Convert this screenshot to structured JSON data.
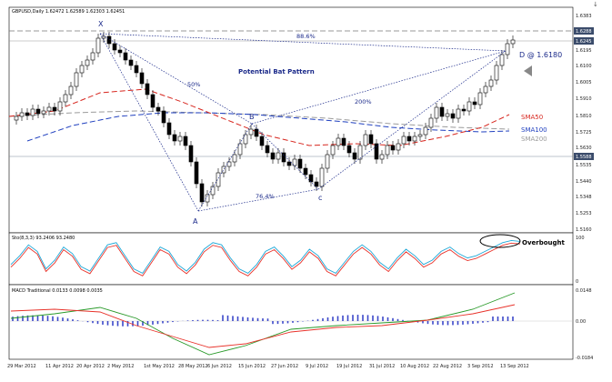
{
  "colors": {
    "sma50": "#d7261e",
    "sma100": "#1f3fbf",
    "sma200": "#9a9a9a",
    "pattern": "#1b2a8a",
    "bull": "#ffffff",
    "bear": "#000000",
    "stoch_main": "#1ea8d8",
    "stoch_signal": "#e8322a",
    "macd_hist": "#3b47c9",
    "macd_line": "#2a9a2a",
    "macd_signal": "#e8322a",
    "price_badge_bg": "#3b4c6b"
  },
  "main_chart": {
    "header": "GBPUSD,Daily  1.62472 1.62589 1.62303 1.62451",
    "pattern_title": "Potential Bat Pattern",
    "point_labels": {
      "x": "X",
      "a": "A",
      "b": "B",
      "c": "c",
      "d": "D @ 1.6180"
    },
    "ratios": {
      "xa_ab": "50%",
      "xd": "88.6%",
      "ab_bc": "76.4%",
      "bc_cd": "200%"
    },
    "ma_labels": {
      "sma50": "SMA50",
      "sma100": "SMA100",
      "sma200": "SMA200"
    },
    "price_axis": [
      "1.6383",
      "1.6288",
      "1.6195",
      "1.6100",
      "1.6005",
      "1.5910",
      "1.5810",
      "1.5725",
      "1.5630",
      "1.5535",
      "1.5440",
      "1.5348",
      "1.5253",
      "1.5160"
    ],
    "price_badges": [
      "1.6288",
      "1.6245",
      "1.5588"
    ]
  },
  "stochastic": {
    "header": "Sto(8,3,3) 93.2406 93.2480",
    "axis": [
      "100",
      "0"
    ],
    "annotation": "Overbought"
  },
  "macd": {
    "header": "MACD Traditional 0.0133 0.0098 0.0035",
    "axis": [
      "0.0148",
      "0.00",
      "-0.0184"
    ]
  },
  "time_axis": [
    "29 Mar 2012",
    "11 Apr 2012",
    "20 Apr 2012",
    "2 May 2012",
    "1st May 2012",
    "28 May 2012",
    "6 Jun 2012",
    "15 Jun 2012",
    "27 Jun 2012",
    "9 Jul 2012",
    "19 Jul 2012",
    "31 Jul 2012",
    "10 Aug 2012",
    "22 Aug 2012",
    "3 Sep 2012",
    "13 Sep 2012"
  ],
  "corner_marker": "↓"
}
